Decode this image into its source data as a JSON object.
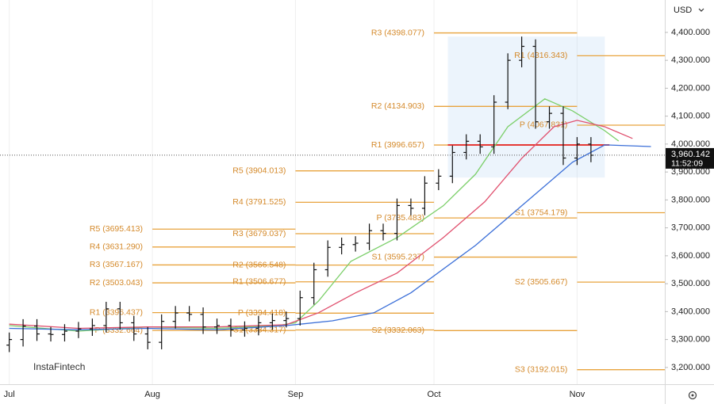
{
  "chart_data": {
    "type": "ohlc",
    "currency": "USD",
    "watermark": "InstaFintech",
    "xlim": [
      -2,
      142
    ],
    "xticks": [
      {
        "value": 0,
        "label": "Jul"
      },
      {
        "value": 31,
        "label": "Aug"
      },
      {
        "value": 62,
        "label": "Sep"
      },
      {
        "value": 92,
        "label": "Oct"
      },
      {
        "value": 123,
        "label": "Nov"
      }
    ],
    "ylim": [
      3140,
      4516
    ],
    "yticks": [
      {
        "value": 3200,
        "label": "3,200.000"
      },
      {
        "value": 3300,
        "label": "3,300.000"
      },
      {
        "value": 3400,
        "label": "3,400.000"
      },
      {
        "value": 3500,
        "label": "3,500.000"
      },
      {
        "value": 3600,
        "label": "3,600.000"
      },
      {
        "value": 3700,
        "label": "3,700.000"
      },
      {
        "value": 3800,
        "label": "3,800.000"
      },
      {
        "value": 3900,
        "label": "3,900.000"
      },
      {
        "value": 4000,
        "label": "4,000.000"
      },
      {
        "value": 4100,
        "label": "4,100.000"
      },
      {
        "value": 4200,
        "label": "4,200.000"
      },
      {
        "value": 4300,
        "label": "4,300.000"
      },
      {
        "value": 4400,
        "label": "4,400.000"
      }
    ],
    "grid": "x",
    "ohlc": {
      "color": "#111111",
      "x": [
        0,
        3,
        6,
        9,
        12,
        15,
        18,
        21,
        24,
        27,
        30,
        33,
        36,
        39,
        42,
        45,
        48,
        51,
        54,
        57,
        60,
        63,
        66,
        69,
        72,
        75,
        78,
        81,
        84,
        87,
        90,
        93,
        96,
        99,
        102,
        105,
        108,
        111,
        114,
        117,
        120,
        123,
        126
      ],
      "open": [
        3280,
        3300,
        3348,
        3320,
        3318,
        3330,
        3338,
        3350,
        3410,
        3360,
        3320,
        3290,
        3365,
        3395,
        3390,
        3345,
        3350,
        3335,
        3340,
        3360,
        3368,
        3375,
        3450,
        3550,
        3630,
        3640,
        3645,
        3690,
        3680,
        3780,
        3770,
        3860,
        3885,
        3970,
        4010,
        3990,
        4150,
        4300,
        4350,
        4080,
        4110,
        3950,
        4000
      ],
      "high": [
        3325,
        3373,
        3373,
        3345,
        3355,
        3363,
        3375,
        3435,
        3435,
        3385,
        3345,
        3390,
        3420,
        3420,
        3415,
        3375,
        3375,
        3365,
        3385,
        3393,
        3400,
        3475,
        3575,
        3655,
        3665,
        3670,
        3715,
        3715,
        3805,
        3805,
        3885,
        3910,
        3995,
        4035,
        4035,
        4175,
        4325,
        4385,
        4375,
        4135,
        4135,
        4025,
        4025
      ],
      "low": [
        3255,
        3275,
        3295,
        3293,
        3293,
        3305,
        3313,
        3325,
        3335,
        3295,
        3265,
        3265,
        3340,
        3365,
        3320,
        3320,
        3310,
        3310,
        3315,
        3335,
        3343,
        3350,
        3425,
        3525,
        3605,
        3615,
        3620,
        3655,
        3655,
        3745,
        3745,
        3835,
        3860,
        3945,
        3965,
        3965,
        4125,
        4275,
        4055,
        4055,
        3925,
        3925,
        3935
      ],
      "close": [
        3300,
        3348,
        3320,
        3318,
        3330,
        3338,
        3350,
        3410,
        3360,
        3320,
        3290,
        3365,
        3395,
        3390,
        3345,
        3350,
        3335,
        3340,
        3360,
        3368,
        3375,
        3450,
        3550,
        3630,
        3640,
        3645,
        3690,
        3680,
        3780,
        3770,
        3860,
        3885,
        3970,
        4010,
        3990,
        4150,
        4300,
        4350,
        4080,
        4110,
        3950,
        4000,
        3960
      ]
    },
    "series": [
      {
        "color": "#7ccf6a",
        "x": [
          0,
          15,
          30,
          45,
          58,
          62,
          67,
          74,
          84,
          94,
          101,
          108,
          116,
          122,
          129,
          132
        ],
        "values": [
          3350,
          3330,
          3345,
          3340,
          3350,
          3360,
          3438,
          3580,
          3665,
          3779,
          3892,
          4062,
          4162,
          4119,
          4048,
          4011
        ]
      },
      {
        "color": "#e0506e",
        "x": [
          0,
          15,
          30,
          45,
          60,
          67,
          75,
          84,
          94,
          103,
          111,
          118,
          123,
          129,
          135
        ],
        "values": [
          3355,
          3340,
          3345,
          3345,
          3353,
          3396,
          3467,
          3538,
          3665,
          3793,
          3949,
          4062,
          4085,
          4062,
          4020
        ]
      },
      {
        "color": "#3b6fd8",
        "x": [
          0,
          15,
          30,
          45,
          60,
          70,
          79,
          87,
          101,
          111,
          122,
          129,
          139
        ],
        "values": [
          3340,
          3335,
          3340,
          3335,
          3350,
          3367,
          3396,
          3467,
          3637,
          3779,
          3935,
          3997,
          3991
        ]
      }
    ],
    "pivot_color": "#e8a33d",
    "pivots": [
      {
        "start": 31,
        "end": 62,
        "levels": [
          {
            "label": "R5 (3695.413)",
            "value": 3695.413
          },
          {
            "label": "R4 (3631.290)",
            "value": 3631.29
          },
          {
            "label": "R3 (3567.167)",
            "value": 3567.167
          },
          {
            "label": "R2 (3503.043)",
            "value": 3503.043
          },
          {
            "label": "R1 (3396.437)",
            "value": 3396.437
          },
          {
            "label": "P (3332.664)",
            "value": 3332.664
          }
        ]
      },
      {
        "start": 62,
        "end": 92,
        "levels": [
          {
            "label": "R5 (3904.013)",
            "value": 3904.013
          },
          {
            "label": "R4 (3791.525)",
            "value": 3791.525
          },
          {
            "label": "R3 (3679.037)",
            "value": 3679.037
          },
          {
            "label": "R2 (3566.548)",
            "value": 3566.548
          },
          {
            "label": "R1 (3506.677)",
            "value": 3506.677
          },
          {
            "label": "P (3394.418)",
            "value": 3394.418
          },
          {
            "label": "S1 (3334.317)",
            "value": 3334.317
          }
        ]
      },
      {
        "start": 92,
        "end": 123,
        "levels": [
          {
            "label": "R3 (4398.077)",
            "value": 4398.077
          },
          {
            "label": "R2 (4134.903)",
            "value": 4134.903
          },
          {
            "label": "R1 (3996.657)",
            "value": 3996.657
          },
          {
            "label": "P (3735.483)",
            "value": 3735.483
          },
          {
            "label": "S1 (3595.237)",
            "value": 3595.237
          },
          {
            "label": "S2 (3332.063)",
            "value": 3332.063
          }
        ]
      },
      {
        "start": 123,
        "end": 142,
        "levels": [
          {
            "label": "R1 (4316.343)",
            "value": 4316.343
          },
          {
            "label": "P (4067.831)",
            "value": 4067.831
          },
          {
            "label": "S1 (3754.179)",
            "value": 3754.179
          },
          {
            "label": "S2 (3505.667)",
            "value": 3505.667
          },
          {
            "label": "S3 (3192.015)",
            "value": 3192.015
          }
        ]
      }
    ],
    "last_price": {
      "value": 3960.142,
      "label": "3,960.142"
    },
    "countdown": "11:52:09"
  }
}
